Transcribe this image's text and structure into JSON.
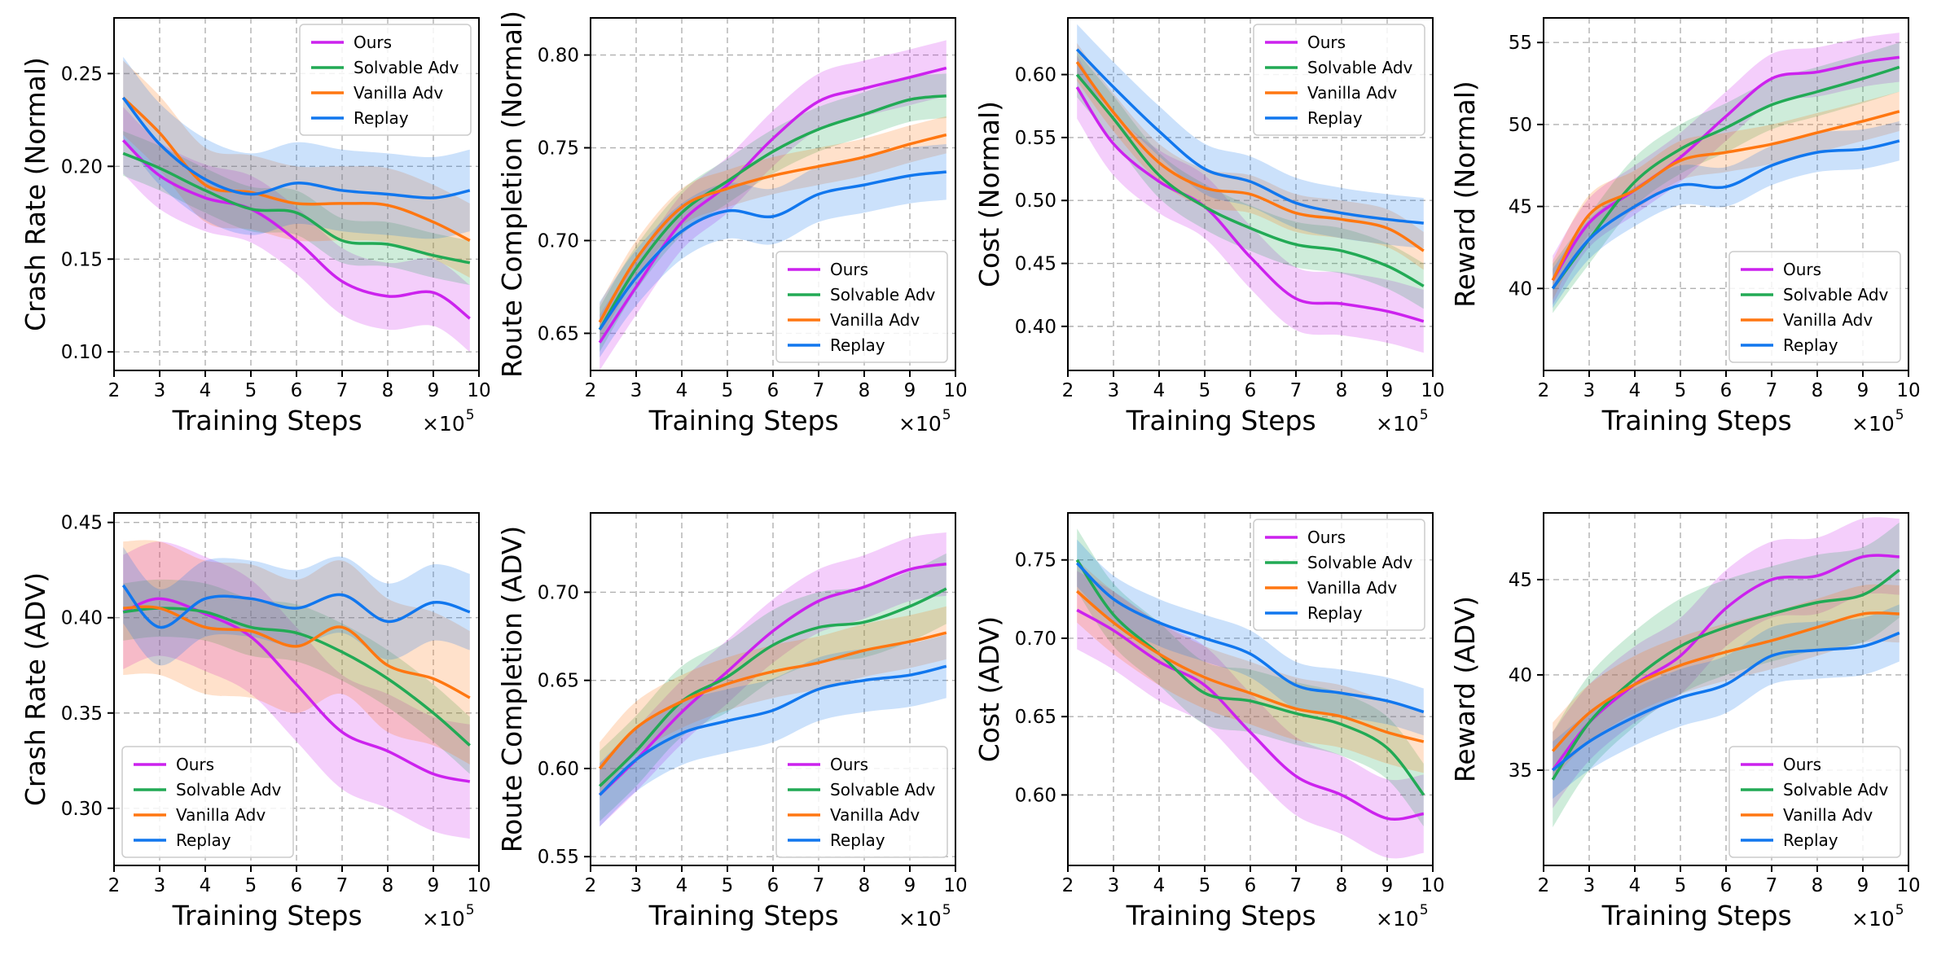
{
  "figure": {
    "x_label": "Training Steps",
    "x_multiplier_base": "×10",
    "x_multiplier_exp": "5",
    "x_ticks": [
      2,
      3,
      4,
      5,
      6,
      7,
      8,
      9,
      10
    ],
    "legend_labels": [
      "Ours",
      "Solvable Adv",
      "Vanilla Adv",
      "Replay"
    ],
    "colors": {
      "Ours": "#cc22ee",
      "Solvable Adv": "#22aa55",
      "Vanilla Adv": "#ff7711",
      "Replay": "#1177ee"
    }
  },
  "chart_data": [
    {
      "type": "line",
      "ylabel": "Crash Rate (Normal)",
      "xlim": [
        2,
        10
      ],
      "ylim": [
        0.09,
        0.28
      ],
      "yticks": [
        0.1,
        0.15,
        0.2,
        0.25
      ],
      "ytick_labels": [
        "0.10",
        "0.15",
        "0.20",
        "0.25"
      ],
      "legend": "top-right",
      "grid": true,
      "x": [
        2.2,
        3,
        4,
        5,
        6,
        7,
        8,
        9,
        9.8
      ],
      "series": [
        {
          "name": "Ours",
          "values": [
            0.214,
            0.195,
            0.183,
            0.177,
            0.16,
            0.138,
            0.13,
            0.132,
            0.118
          ],
          "band": 0.018
        },
        {
          "name": "Solvable Adv",
          "values": [
            0.207,
            0.199,
            0.187,
            0.177,
            0.175,
            0.16,
            0.158,
            0.152,
            0.148
          ],
          "band": 0.012
        },
        {
          "name": "Vanilla Adv",
          "values": [
            0.237,
            0.218,
            0.19,
            0.186,
            0.18,
            0.18,
            0.179,
            0.17,
            0.16
          ],
          "band": 0.02
        },
        {
          "name": "Replay",
          "values": [
            0.237,
            0.212,
            0.193,
            0.185,
            0.191,
            0.187,
            0.185,
            0.183,
            0.187
          ],
          "band": 0.022
        }
      ]
    },
    {
      "type": "line",
      "ylabel": "Route Completion (Normal)",
      "xlim": [
        2,
        10
      ],
      "ylim": [
        0.63,
        0.82
      ],
      "yticks": [
        0.65,
        0.7,
        0.75,
        0.8
      ],
      "ytick_labels": [
        "0.65",
        "0.70",
        "0.75",
        "0.80"
      ],
      "legend": "bottom-right",
      "grid": true,
      "x": [
        2.2,
        3,
        4,
        5,
        6,
        7,
        8,
        9,
        9.8
      ],
      "series": [
        {
          "name": "Ours",
          "values": [
            0.645,
            0.675,
            0.71,
            0.73,
            0.755,
            0.775,
            0.782,
            0.788,
            0.793
          ],
          "band": 0.015
        },
        {
          "name": "Solvable Adv",
          "values": [
            0.652,
            0.685,
            0.715,
            0.732,
            0.748,
            0.76,
            0.768,
            0.776,
            0.778
          ],
          "band": 0.012
        },
        {
          "name": "Vanilla Adv",
          "values": [
            0.656,
            0.69,
            0.718,
            0.728,
            0.735,
            0.74,
            0.745,
            0.752,
            0.757
          ],
          "band": 0.01
        },
        {
          "name": "Replay",
          "values": [
            0.652,
            0.68,
            0.705,
            0.716,
            0.713,
            0.725,
            0.73,
            0.735,
            0.737
          ],
          "band": 0.015
        }
      ]
    },
    {
      "type": "line",
      "ylabel": "Cost (Normal)",
      "xlim": [
        2,
        10
      ],
      "ylim": [
        0.365,
        0.645
      ],
      "yticks": [
        0.4,
        0.45,
        0.5,
        0.55,
        0.6
      ],
      "ytick_labels": [
        "0.40",
        "0.45",
        "0.50",
        "0.55",
        "0.60"
      ],
      "legend": "top-right",
      "grid": true,
      "x": [
        2.2,
        3,
        4,
        5,
        6,
        7,
        8,
        9,
        9.8
      ],
      "series": [
        {
          "name": "Ours",
          "values": [
            0.59,
            0.545,
            0.515,
            0.495,
            0.455,
            0.422,
            0.418,
            0.412,
            0.404
          ],
          "band": 0.025
        },
        {
          "name": "Solvable Adv",
          "values": [
            0.6,
            0.565,
            0.52,
            0.495,
            0.478,
            0.465,
            0.46,
            0.448,
            0.432
          ],
          "band": 0.018
        },
        {
          "name": "Vanilla Adv",
          "values": [
            0.61,
            0.57,
            0.53,
            0.51,
            0.505,
            0.49,
            0.485,
            0.478,
            0.46
          ],
          "band": 0.015
        },
        {
          "name": "Replay",
          "values": [
            0.62,
            0.59,
            0.555,
            0.525,
            0.515,
            0.498,
            0.49,
            0.485,
            0.482
          ],
          "band": 0.02
        }
      ]
    },
    {
      "type": "line",
      "ylabel": "Reward (Normal)",
      "xlim": [
        2,
        10
      ],
      "ylim": [
        35,
        56.5
      ],
      "yticks": [
        40,
        45,
        50,
        55
      ],
      "ytick_labels": [
        "40",
        "45",
        "50",
        "55"
      ],
      "legend": "bottom-right",
      "grid": true,
      "x": [
        2.2,
        3,
        4,
        5,
        6,
        7,
        8,
        9,
        9.8
      ],
      "series": [
        {
          "name": "Ours",
          "values": [
            40.5,
            44.0,
            46.0,
            48.0,
            50.5,
            52.8,
            53.2,
            53.8,
            54.1
          ],
          "band": 1.5
        },
        {
          "name": "Solvable Adv",
          "values": [
            40.0,
            43.0,
            46.5,
            48.5,
            49.8,
            51.2,
            52.0,
            52.8,
            53.5
          ],
          "band": 1.5
        },
        {
          "name": "Vanilla Adv",
          "values": [
            40.5,
            44.5,
            46.0,
            47.8,
            48.3,
            48.8,
            49.5,
            50.2,
            50.8
          ],
          "band": 1.2
        },
        {
          "name": "Replay",
          "values": [
            40.0,
            43.0,
            45.0,
            46.3,
            46.2,
            47.5,
            48.3,
            48.5,
            49.0
          ],
          "band": 1.2
        }
      ]
    },
    {
      "type": "line",
      "ylabel": "Crash Rate (ADV)",
      "xlim": [
        2,
        10
      ],
      "ylim": [
        0.27,
        0.455
      ],
      "yticks": [
        0.3,
        0.35,
        0.4,
        0.45
      ],
      "ytick_labels": [
        "0.30",
        "0.35",
        "0.40",
        "0.45"
      ],
      "legend": "bottom-left",
      "grid": true,
      "x": [
        2.2,
        3,
        4,
        5,
        6,
        7,
        8,
        9,
        9.8
      ],
      "series": [
        {
          "name": "Ours",
          "values": [
            0.403,
            0.41,
            0.402,
            0.39,
            0.365,
            0.34,
            0.33,
            0.318,
            0.314
          ],
          "band": 0.03
        },
        {
          "name": "Solvable Adv",
          "values": [
            0.403,
            0.405,
            0.403,
            0.395,
            0.392,
            0.382,
            0.368,
            0.35,
            0.333
          ],
          "band": 0.015
        },
        {
          "name": "Vanilla Adv",
          "values": [
            0.405,
            0.405,
            0.395,
            0.393,
            0.385,
            0.395,
            0.375,
            0.368,
            0.358
          ],
          "band": 0.035
        },
        {
          "name": "Replay",
          "values": [
            0.417,
            0.395,
            0.41,
            0.41,
            0.405,
            0.412,
            0.398,
            0.408,
            0.403
          ],
          "band": 0.02
        }
      ]
    },
    {
      "type": "line",
      "ylabel": "Route Completion (ADV)",
      "xlim": [
        2,
        10
      ],
      "ylim": [
        0.545,
        0.745
      ],
      "yticks": [
        0.55,
        0.6,
        0.65,
        0.7
      ],
      "ytick_labels": [
        "0.55",
        "0.60",
        "0.65",
        "0.70"
      ],
      "legend": "bottom-right",
      "grid": true,
      "x": [
        2.2,
        3,
        4,
        5,
        6,
        7,
        8,
        9,
        9.8
      ],
      "series": [
        {
          "name": "Ours",
          "values": [
            0.585,
            0.605,
            0.632,
            0.655,
            0.678,
            0.695,
            0.703,
            0.713,
            0.716
          ],
          "band": 0.018
        },
        {
          "name": "Solvable Adv",
          "values": [
            0.59,
            0.61,
            0.638,
            0.652,
            0.67,
            0.68,
            0.683,
            0.692,
            0.702
          ],
          "band": 0.02
        },
        {
          "name": "Vanilla Adv",
          "values": [
            0.6,
            0.623,
            0.638,
            0.648,
            0.655,
            0.66,
            0.667,
            0.672,
            0.677
          ],
          "band": 0.015
        },
        {
          "name": "Replay",
          "values": [
            0.585,
            0.605,
            0.62,
            0.627,
            0.633,
            0.645,
            0.65,
            0.653,
            0.658
          ],
          "band": 0.018
        }
      ]
    },
    {
      "type": "line",
      "ylabel": "Cost (ADV)",
      "xlim": [
        2,
        10
      ],
      "ylim": [
        0.555,
        0.78
      ],
      "yticks": [
        0.6,
        0.65,
        0.7,
        0.75
      ],
      "ytick_labels": [
        "0.60",
        "0.65",
        "0.70",
        "0.75"
      ],
      "legend": "top-right",
      "grid": true,
      "x": [
        2.2,
        3,
        4,
        5,
        6,
        7,
        8,
        9,
        9.8
      ],
      "series": [
        {
          "name": "Ours",
          "values": [
            0.718,
            0.705,
            0.685,
            0.67,
            0.64,
            0.612,
            0.6,
            0.585,
            0.588
          ],
          "band": 0.025
        },
        {
          "name": "Solvable Adv",
          "values": [
            0.75,
            0.715,
            0.69,
            0.665,
            0.66,
            0.652,
            0.645,
            0.63,
            0.6
          ],
          "band": 0.02
        },
        {
          "name": "Vanilla Adv",
          "values": [
            0.73,
            0.71,
            0.69,
            0.675,
            0.665,
            0.655,
            0.65,
            0.64,
            0.634
          ],
          "band": 0.02
        },
        {
          "name": "Replay",
          "values": [
            0.748,
            0.725,
            0.71,
            0.7,
            0.69,
            0.67,
            0.665,
            0.66,
            0.653
          ],
          "band": 0.015
        }
      ]
    },
    {
      "type": "line",
      "ylabel": "Reward (ADV)",
      "xlim": [
        2,
        10
      ],
      "ylim": [
        30,
        48.5
      ],
      "yticks": [
        35,
        40,
        45
      ],
      "ytick_labels": [
        "35",
        "40",
        "45"
      ],
      "legend": "bottom-right",
      "grid": true,
      "x": [
        2.2,
        3,
        4,
        5,
        6,
        7,
        8,
        9,
        9.8
      ],
      "series": [
        {
          "name": "Ours",
          "values": [
            35.0,
            37.5,
            39.5,
            41.0,
            43.5,
            45.0,
            45.2,
            46.2,
            46.2
          ],
          "band": 2.0
        },
        {
          "name": "Solvable Adv",
          "values": [
            34.5,
            37.5,
            39.8,
            41.5,
            42.5,
            43.2,
            43.8,
            44.2,
            45.5
          ],
          "band": 2.5
        },
        {
          "name": "Vanilla Adv",
          "values": [
            36.0,
            38.0,
            39.5,
            40.5,
            41.2,
            41.8,
            42.5,
            43.2,
            43.2
          ],
          "band": 1.5
        },
        {
          "name": "Replay",
          "values": [
            35.0,
            36.5,
            37.8,
            38.8,
            39.5,
            41.0,
            41.3,
            41.5,
            42.2
          ],
          "band": 1.5
        }
      ]
    }
  ]
}
